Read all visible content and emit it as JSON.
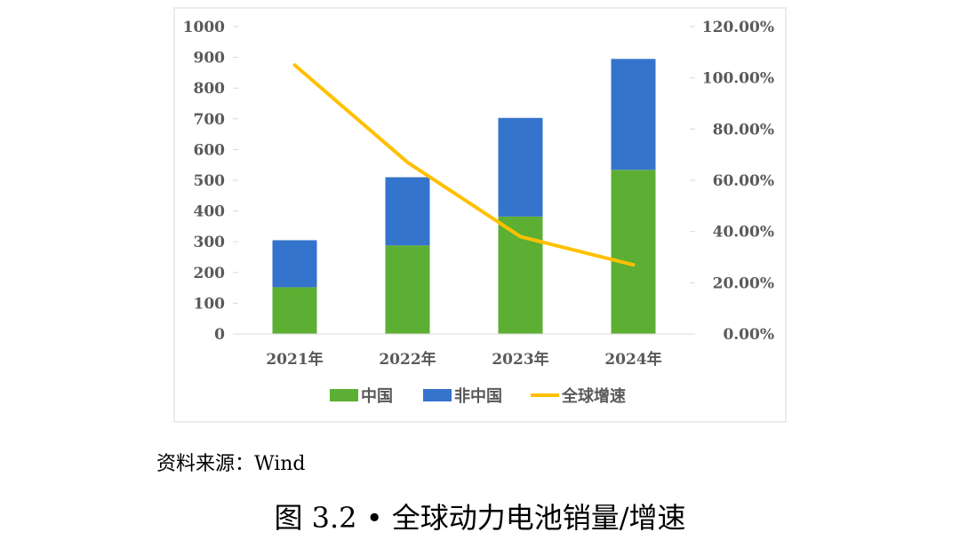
{
  "chart_data": {
    "type": "bar",
    "stacked": true,
    "categories": [
      "2021年",
      "2022年",
      "2023年",
      "2024年"
    ],
    "series": [
      {
        "name": "中国",
        "type": "bar",
        "axis": "left",
        "values": [
          152,
          288,
          382,
          534
        ],
        "color": "#5DAF34"
      },
      {
        "name": "非中国",
        "type": "bar",
        "axis": "left",
        "values": [
          153,
          222,
          321,
          361
        ],
        "color": "#3574CC"
      },
      {
        "name": "全球增速",
        "type": "line",
        "axis": "right",
        "values": [
          1.05,
          0.67,
          0.38,
          0.27
        ],
        "color": "#FFC000"
      }
    ],
    "y_left": {
      "min": 0,
      "max": 1000,
      "step": 100,
      "ticks": [
        "0",
        "100",
        "200",
        "300",
        "400",
        "500",
        "600",
        "700",
        "800",
        "900",
        "1000"
      ]
    },
    "y_right": {
      "min": 0,
      "max": 1.2,
      "step": 0.2,
      "ticks": [
        "0.00%",
        "20.00%",
        "40.00%",
        "60.00%",
        "80.00%",
        "100.00%",
        "120.00%"
      ]
    },
    "grid": false,
    "legend_position": "bottom"
  },
  "caption": {
    "source": "资料来源：Wind",
    "figure_title": "图 3.2 • 全球动力电池销量/增速"
  }
}
